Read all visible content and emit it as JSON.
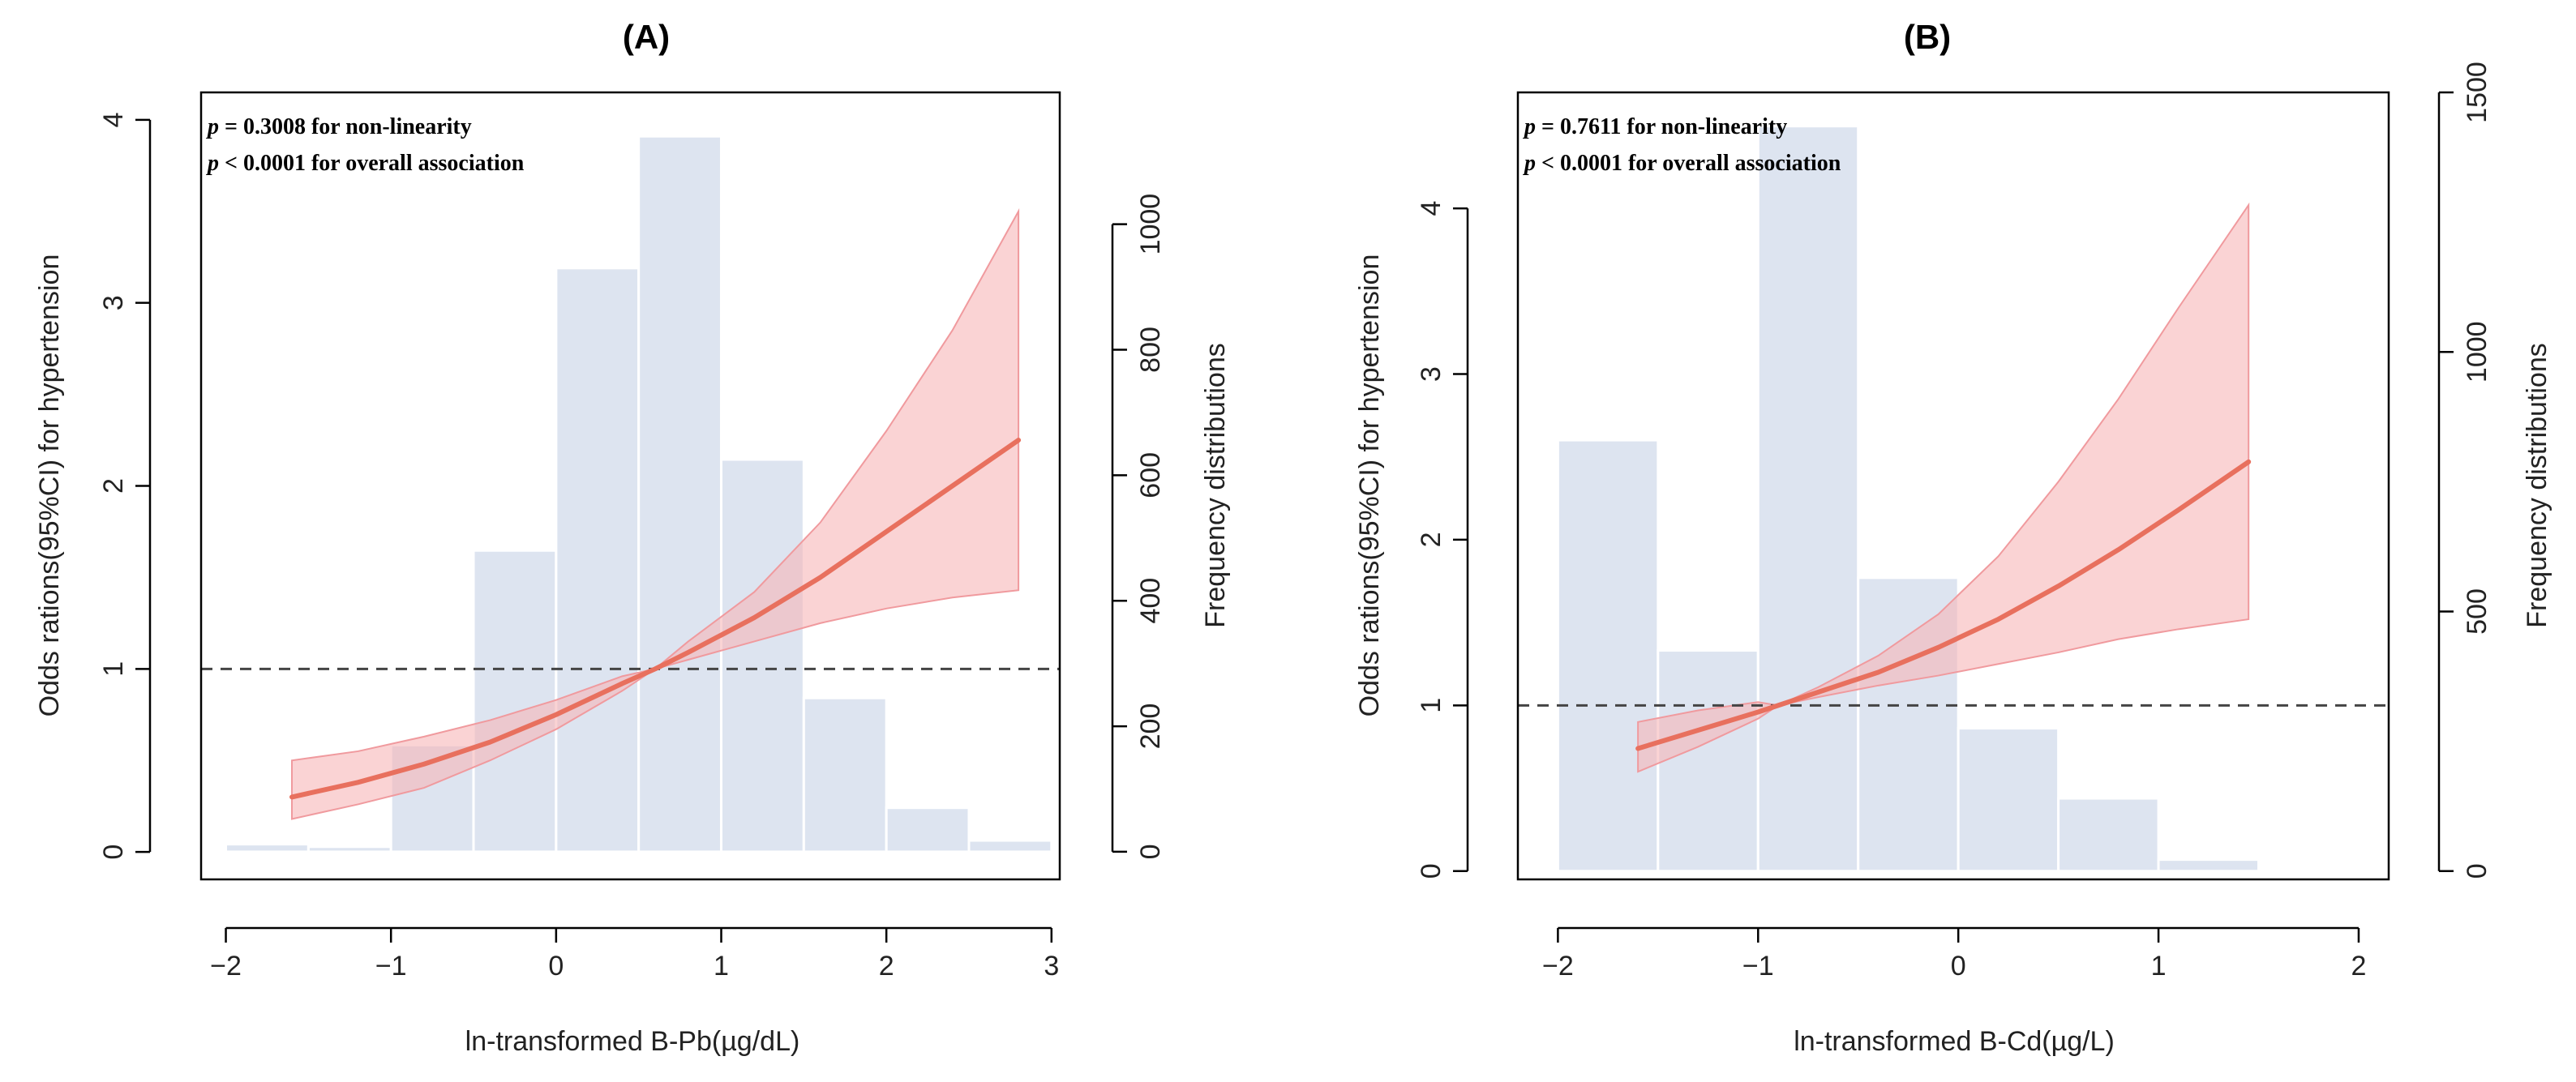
{
  "chart_data": [
    {
      "type": "histogram+line",
      "title": "(A)",
      "xlabel": "ln-transformed B-Pb(µg/dL)",
      "ylabel_left": "Odds rations(95%CI) for hypertension",
      "ylabel_right": "Frequency distributions",
      "xlim": [
        -2.15,
        3.05
      ],
      "ylim_left": [
        -0.15,
        4.15
      ],
      "ylim_right": [
        -44,
        1210
      ],
      "x_ticks": [
        -2,
        -1,
        0,
        1,
        2,
        3
      ],
      "y_left_ticks": [
        0,
        1,
        2,
        3,
        4
      ],
      "y_right_ticks": [
        0,
        200,
        400,
        600,
        800,
        1000
      ],
      "annotations": [
        {
          "p": "p",
          "text": " = 0.3008 for non-linearity"
        },
        {
          "p": "p",
          "text": " < 0.0001 for overall association"
        }
      ],
      "reference_line": 1,
      "histogram": {
        "bin_edges": [
          -2,
          -1.5,
          -1,
          -0.5,
          0,
          0.5,
          1,
          1.5,
          2,
          2.5,
          3
        ],
        "counts": [
          12,
          8,
          170,
          480,
          930,
          1140,
          625,
          245,
          70,
          18
        ]
      },
      "or_curve": {
        "x": [
          -1.6,
          -1.2,
          -0.8,
          -0.4,
          0,
          0.4,
          0.6,
          0.8,
          1.2,
          1.6,
          2.0,
          2.4,
          2.8
        ],
        "y": [
          0.3,
          0.38,
          0.48,
          0.6,
          0.75,
          0.92,
          1.0,
          1.09,
          1.28,
          1.5,
          1.75,
          2.0,
          2.25
        ],
        "ci_lower": [
          0.18,
          0.26,
          0.35,
          0.5,
          0.67,
          0.88,
          1.0,
          1.05,
          1.15,
          1.25,
          1.33,
          1.39,
          1.43
        ],
        "ci_upper": [
          0.5,
          0.55,
          0.63,
          0.72,
          0.83,
          0.96,
          1.0,
          1.15,
          1.42,
          1.8,
          2.3,
          2.85,
          3.5
        ]
      },
      "colors": {
        "bars": "#dde4f0",
        "line": "#e8705e",
        "band": "#f7b5b8",
        "refline": "#444444"
      }
    },
    {
      "type": "histogram+line",
      "title": "(B)",
      "xlabel": "ln-transformed B-Cd(µg/L)",
      "ylabel_left": "Odds rations(95%CI) for hypertension",
      "ylabel_right": "Frequency distributions",
      "xlim": [
        -2.2,
        2.15
      ],
      "ylim_left": [
        -0.05,
        4.7
      ],
      "ylim_right": [
        -16,
        1500
      ],
      "x_ticks": [
        -2,
        -1,
        0,
        1,
        2
      ],
      "y_left_ticks": [
        0,
        1,
        2,
        3,
        4
      ],
      "y_right_ticks": [
        0,
        500,
        1000,
        1500
      ],
      "annotations": [
        {
          "p": "p",
          "text": " = 0.7611 for non-linearity"
        },
        {
          "p": "p",
          "text": " < 0.0001 for overall association"
        }
      ],
      "reference_line": 1,
      "histogram": {
        "bin_edges": [
          -2,
          -1.5,
          -1,
          -0.5,
          0,
          0.5,
          1,
          1.5,
          2
        ],
        "counts": [
          830,
          425,
          1435,
          565,
          275,
          140,
          22,
          3
        ]
      },
      "or_curve": {
        "x": [
          -1.6,
          -1.3,
          -1.0,
          -0.9,
          -0.7,
          -0.4,
          -0.1,
          0.2,
          0.5,
          0.8,
          1.1,
          1.45
        ],
        "y": [
          0.74,
          0.85,
          0.96,
          1.0,
          1.08,
          1.2,
          1.35,
          1.52,
          1.72,
          1.94,
          2.18,
          2.47
        ],
        "ci_lower": [
          0.6,
          0.75,
          0.92,
          1.0,
          1.05,
          1.12,
          1.18,
          1.25,
          1.32,
          1.4,
          1.46,
          1.52
        ],
        "ci_upper": [
          0.9,
          0.97,
          1.02,
          1.0,
          1.11,
          1.3,
          1.55,
          1.9,
          2.35,
          2.85,
          3.4,
          4.02
        ]
      },
      "colors": {
        "bars": "#dde4f0",
        "line": "#e8705e",
        "band": "#f7b5b8",
        "refline": "#444444"
      }
    }
  ]
}
